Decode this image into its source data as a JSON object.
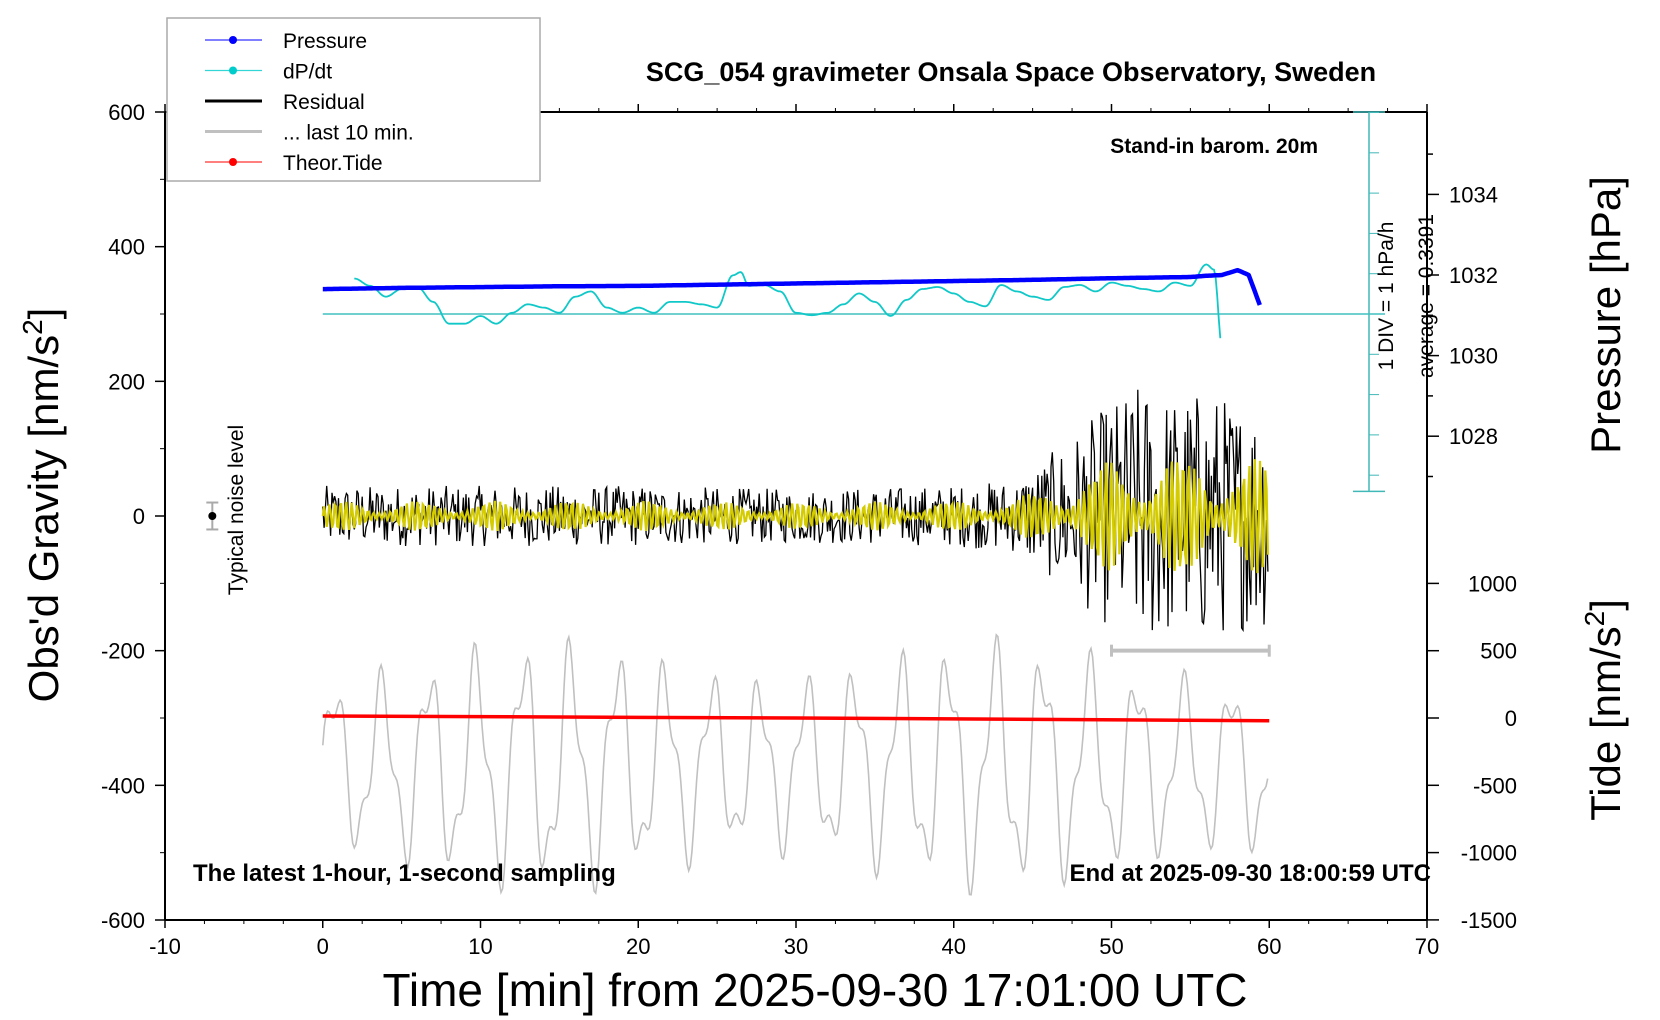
{
  "chart_data": {
    "type": "line",
    "title": "SCG_054 gravimeter Onsala Space Observatory, Sweden",
    "subtitle_left": "The latest 1-hour, 1-second sampling",
    "subtitle_right": "End at 2025-09-30 18:00:59 UTC",
    "barometer_note": "Stand-in barom. 20m",
    "xlabel": "Time [min] from 2025-09-30 17:01:00 UTC",
    "ylabel": "Obs'd Gravity [nm/s",
    "ylabel_sup": "2",
    "ylabel_close": "]",
    "y2label": "Pressure [hPa]",
    "y3label": "Tide [nm/s",
    "y3label_sup": "2",
    "y3label_close": "]",
    "xlim": [
      -10,
      70
    ],
    "ylim": [
      -600,
      600
    ],
    "xticks": [
      "-10",
      "0",
      "10",
      "20",
      "30",
      "40",
      "50",
      "60",
      "70"
    ],
    "yticks": [
      "600",
      "400",
      "200",
      "0",
      "-200",
      "-400",
      "-600"
    ],
    "pressure_ticks": [
      "1034",
      "1032",
      "1030",
      "1028"
    ],
    "tide_ticks": [
      "1000",
      "500",
      "0",
      "-500",
      "-1000",
      "-1500"
    ],
    "dpdt_scale_label": "1 DIV = 1 hPa/h",
    "dpdt_average_label": "average = 0.3391",
    "noise_label": "Typical noise level",
    "noise_level": 20,
    "legend": {
      "placement": "top-left",
      "items": [
        {
          "label": "Pressure",
          "color": "#0000ff"
        },
        {
          "label": "dP/dt",
          "color": "#00cccc"
        },
        {
          "label": "Residual",
          "color": "#000000"
        },
        {
          "label": "... last 10 min.",
          "color": "#c0c0c0"
        },
        {
          "label": "Theor.Tide",
          "color": "#ff0000"
        }
      ]
    },
    "series": [
      {
        "name": "Pressure",
        "unit": "hPa",
        "x": [
          0,
          5,
          10,
          15,
          20,
          25,
          30,
          35,
          40,
          45,
          50,
          55,
          56,
          57,
          58,
          58.7,
          59.5
        ],
        "values": [
          1031.65,
          1031.68,
          1031.7,
          1031.72,
          1031.73,
          1031.76,
          1031.79,
          1031.82,
          1031.85,
          1031.88,
          1031.92,
          1031.95,
          1031.98,
          1032.0,
          1032.12,
          1032.0,
          1031.15
        ]
      },
      {
        "name": "dP/dt",
        "unit": "hPa/h",
        "x": [
          2,
          3,
          4,
          5,
          6,
          7,
          8,
          9,
          10,
          11,
          12,
          13,
          14,
          15,
          16,
          17,
          18,
          19,
          20,
          21,
          22,
          23,
          24,
          25,
          26,
          26.5,
          27,
          28,
          29,
          30,
          31,
          32,
          33,
          34,
          35,
          36,
          37,
          38,
          39,
          40,
          41,
          42,
          43,
          44,
          45,
          46,
          47,
          48,
          49,
          50,
          51,
          52,
          53,
          54,
          55,
          56,
          56.5,
          57
        ],
        "values": [
          0.88,
          0.7,
          0.43,
          0.62,
          0.67,
          0.3,
          -0.24,
          -0.24,
          -0.05,
          -0.24,
          0.03,
          0.24,
          0.16,
          0.03,
          0.43,
          0.56,
          0.16,
          0.03,
          0.16,
          0.03,
          0.3,
          0.3,
          0.24,
          0.16,
          0.96,
          1.04,
          0.7,
          0.72,
          0.56,
          0.03,
          -0.03,
          0.03,
          0.24,
          0.51,
          0.3,
          -0.05,
          0.35,
          0.62,
          0.67,
          0.51,
          0.3,
          0.19,
          0.72,
          0.56,
          0.43,
          0.35,
          0.67,
          0.72,
          0.56,
          0.78,
          0.7,
          0.62,
          0.56,
          0.78,
          0.7,
          1.23,
          1.1,
          -0.78
        ]
      },
      {
        "name": "Residual",
        "unit": "nm/s2",
        "envelope_x": [
          0,
          10,
          20,
          30,
          40,
          44,
          46,
          48,
          50,
          52,
          54,
          56,
          58,
          60
        ],
        "envelope_amplitude": [
          45,
          45,
          45,
          40,
          45,
          55,
          90,
          130,
          170,
          200,
          180,
          190,
          170,
          170
        ]
      },
      {
        "name": "... last 10 min.",
        "unit": "nm/s2",
        "offset": -370,
        "amplitude_range": [
          80,
          200
        ]
      },
      {
        "name": "Theor.Tide",
        "unit": "nm/s2",
        "x": [
          0,
          30,
          60
        ],
        "values": [
          15,
          0,
          -20
        ]
      }
    ],
    "last10_bar": {
      "x": [
        50,
        60
      ],
      "y": -200
    }
  }
}
